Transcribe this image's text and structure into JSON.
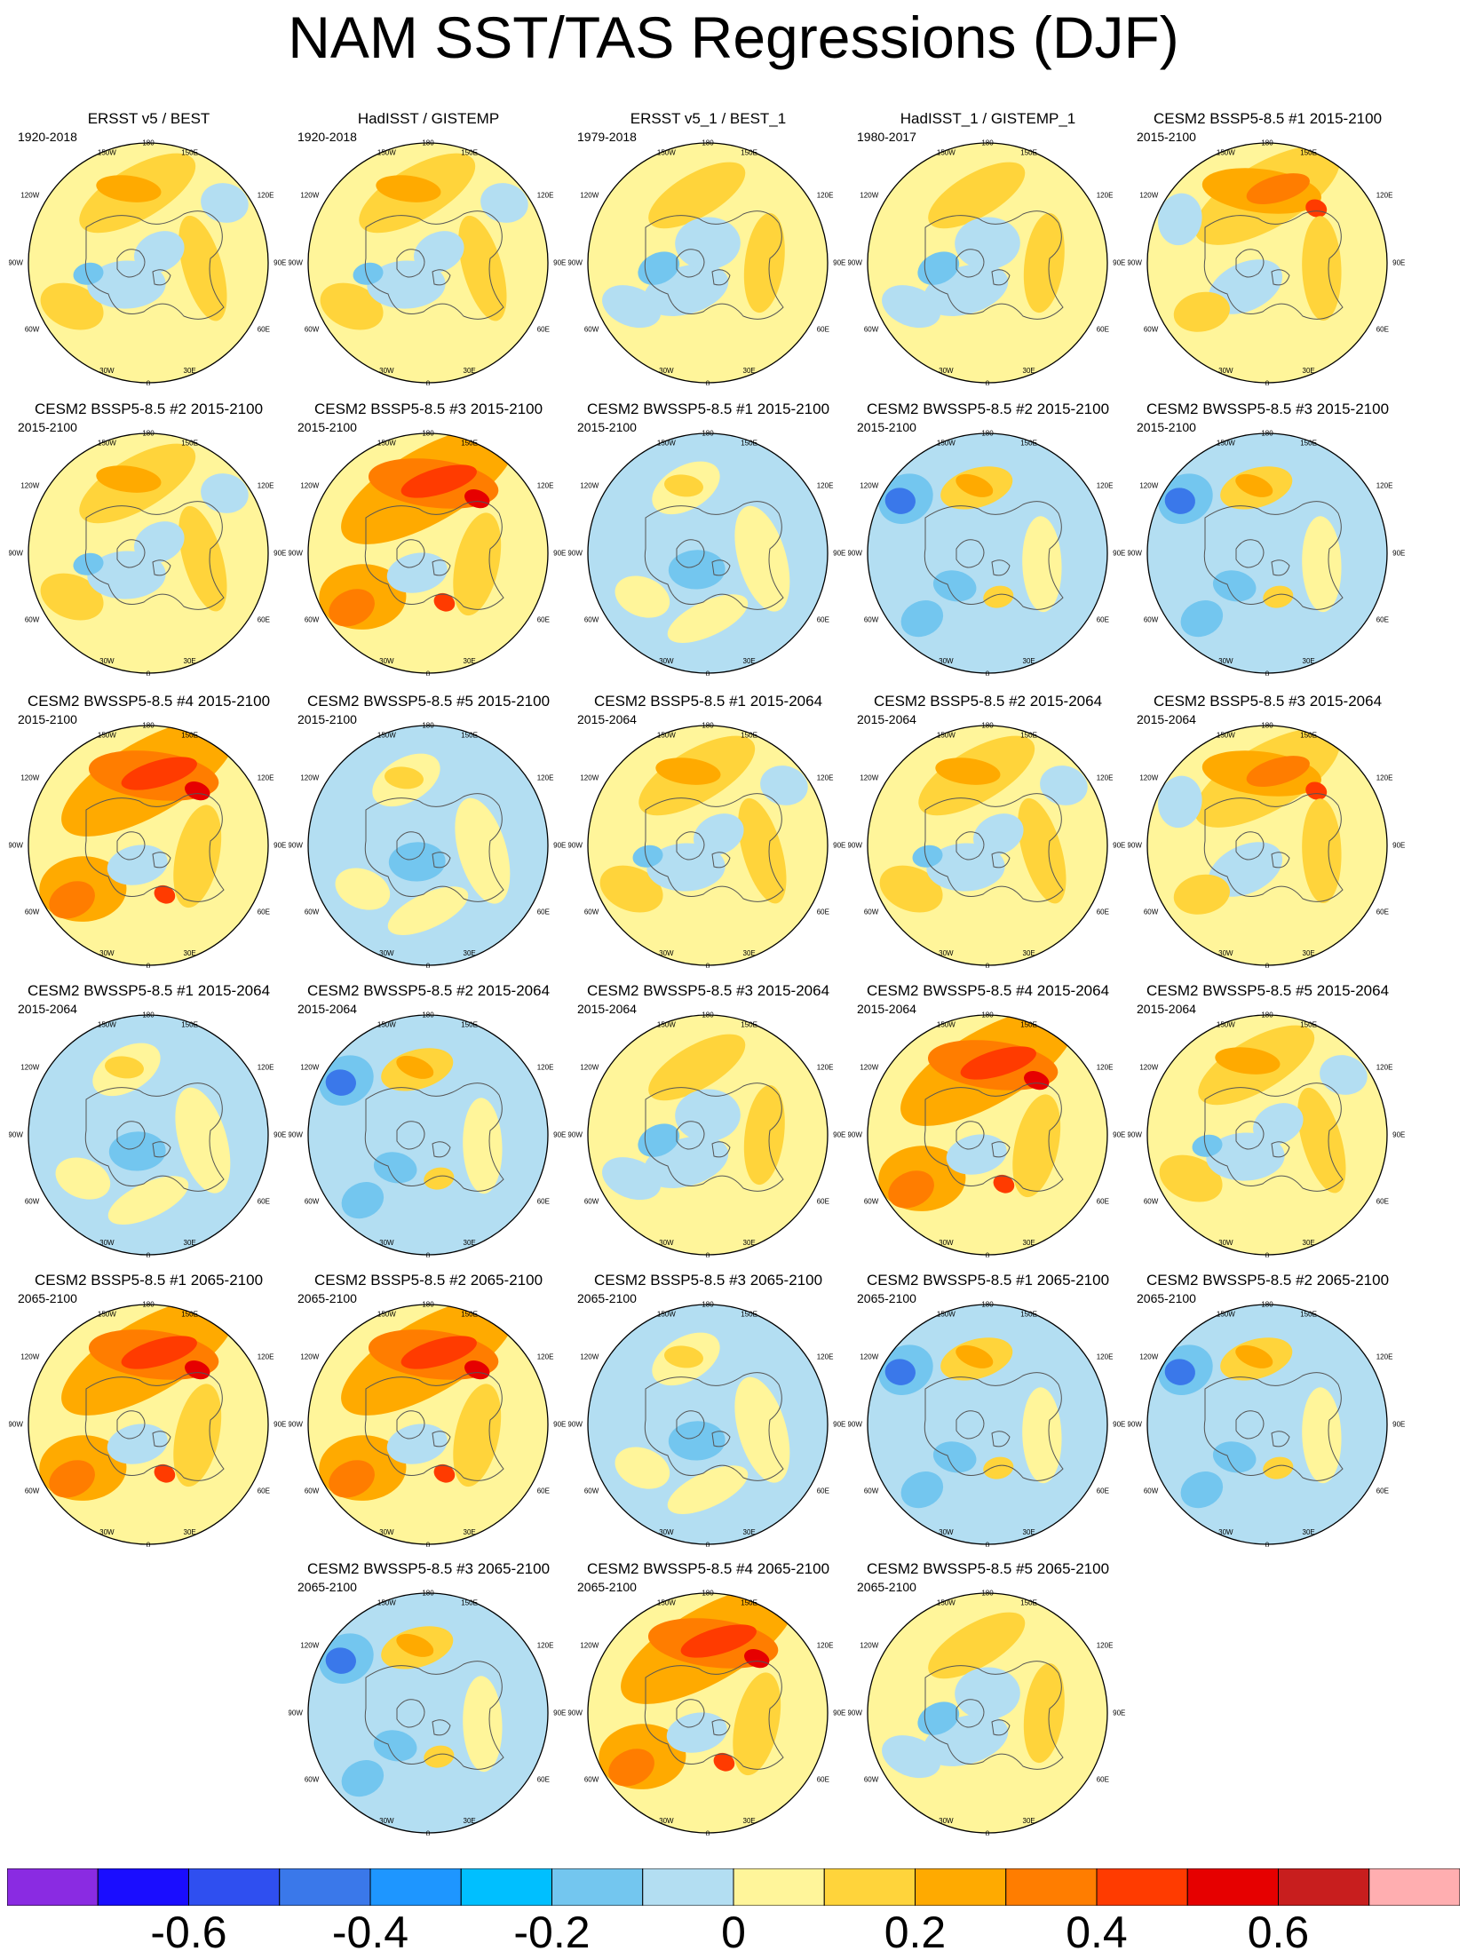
{
  "title": "NAM SST/TAS Regressions (DJF)",
  "map_labels": {
    "top": "180",
    "bottom": "0",
    "upper_left": "150W",
    "upper_right": "150E",
    "mid_upper_left": "120W",
    "mid_upper_right": "120E",
    "left": "90W",
    "right": "90E",
    "mid_lower_left": "60W",
    "mid_lower_right": "60E",
    "lower_left": "30W",
    "lower_right": "30E"
  },
  "panels": [
    {
      "title": "ERSST v5 / BEST",
      "period": "1920-2018",
      "pattern": "warm_n"
    },
    {
      "title": "HadISST / GISTEMP",
      "period": "1920-2018",
      "pattern": "warm_n"
    },
    {
      "title": "ERSST v5_1 / BEST_1",
      "period": "1979-2018",
      "pattern": "neutral"
    },
    {
      "title": "HadISST_1 / GISTEMP_1",
      "period": "1980-2017",
      "pattern": "neutral"
    },
    {
      "title": "CESM2 BSSP5-8.5 #1 2015-2100",
      "period": "2015-2100",
      "pattern": "hot_n"
    },
    {
      "title": "CESM2 BSSP5-8.5 #2 2015-2100",
      "period": "2015-2100",
      "pattern": "warm_n"
    },
    {
      "title": "CESM2 BSSP5-8.5 #3 2015-2100",
      "period": "2015-2100",
      "pattern": "hot"
    },
    {
      "title": "CESM2 BWSSP5-8.5 #1 2015-2100",
      "period": "2015-2100",
      "pattern": "cool"
    },
    {
      "title": "CESM2 BWSSP5-8.5 #2 2015-2100",
      "period": "2015-2100",
      "pattern": "cold"
    },
    {
      "title": "CESM2 BWSSP5-8.5 #3 2015-2100",
      "period": "2015-2100",
      "pattern": "cold"
    },
    {
      "title": "CESM2 BWSSP5-8.5 #4 2015-2100",
      "period": "2015-2100",
      "pattern": "hot"
    },
    {
      "title": "CESM2 BWSSP5-8.5 #5 2015-2100",
      "period": "2015-2100",
      "pattern": "cool"
    },
    {
      "title": "CESM2 BSSP5-8.5 #1 2015-2064",
      "period": "2015-2064",
      "pattern": "warm_n"
    },
    {
      "title": "CESM2 BSSP5-8.5 #2 2015-2064",
      "period": "2015-2064",
      "pattern": "warm_n"
    },
    {
      "title": "CESM2 BSSP5-8.5 #3 2015-2064",
      "period": "2015-2064",
      "pattern": "hot_n"
    },
    {
      "title": "CESM2 BWSSP5-8.5 #1 2015-2064",
      "period": "2015-2064",
      "pattern": "cool"
    },
    {
      "title": "CESM2 BWSSP5-8.5 #2 2015-2064",
      "period": "2015-2064",
      "pattern": "cold"
    },
    {
      "title": "CESM2 BWSSP5-8.5 #3 2015-2064",
      "period": "2015-2064",
      "pattern": "neutral"
    },
    {
      "title": "CESM2 BWSSP5-8.5 #4 2015-2064",
      "period": "2015-2064",
      "pattern": "hot"
    },
    {
      "title": "CESM2 BWSSP5-8.5 #5 2015-2064",
      "period": "2015-2064",
      "pattern": "warm_n"
    },
    {
      "title": "CESM2 BSSP5-8.5 #1 2065-2100",
      "period": "2065-2100",
      "pattern": "hot"
    },
    {
      "title": "CESM2 BSSP5-8.5 #2 2065-2100",
      "period": "2065-2100",
      "pattern": "hot"
    },
    {
      "title": "CESM2 BSSP5-8.5 #3 2065-2100",
      "period": "2065-2100",
      "pattern": "cool"
    },
    {
      "title": "CESM2 BWSSP5-8.5 #1 2065-2100",
      "period": "2065-2100",
      "pattern": "cold"
    },
    {
      "title": "CESM2 BWSSP5-8.5 #2 2065-2100",
      "period": "2065-2100",
      "pattern": "cold"
    },
    {
      "title": "CESM2 BWSSP5-8.5 #3 2065-2100",
      "period": "2065-2100",
      "pattern": "cold"
    },
    {
      "title": "CESM2 BWSSP5-8.5 #4 2065-2100",
      "period": "2065-2100",
      "pattern": "hot"
    },
    {
      "title": "CESM2 BWSSP5-8.5 #5 2065-2100",
      "period": "2065-2100",
      "pattern": "neutral"
    }
  ],
  "colorbar": {
    "colors": [
      "#8a2be2",
      "#1a0dff",
      "#2f4ff0",
      "#3a78ea",
      "#1e96ff",
      "#00bfff",
      "#73c6ef",
      "#b3def2",
      "#fff59a",
      "#ffd43b",
      "#ffaa00",
      "#ff7d00",
      "#ff3b00",
      "#e60000",
      "#c81e1e",
      "#ffaeb0"
    ],
    "ticks": [
      {
        "label": "-0.6",
        "index": 2
      },
      {
        "label": "-0.4",
        "index": 4
      },
      {
        "label": "-0.2",
        "index": 6
      },
      {
        "label": "0",
        "index": 8
      },
      {
        "label": "0.2",
        "index": 10
      },
      {
        "label": "0.4",
        "index": 12
      },
      {
        "label": "0.6",
        "index": 14
      }
    ]
  }
}
